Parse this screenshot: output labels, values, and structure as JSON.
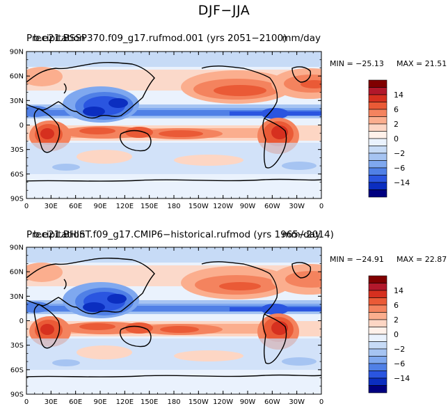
{
  "figure": {
    "title": "DJF−JJA"
  },
  "chart_data": [
    {
      "type": "heatmap",
      "title": "b.e21.BSSP370.f09_g17.rufmod.001 (yrs 2051−2100)",
      "left_label": "Precipitation",
      "right_label": "mm/day",
      "variable": "Precipitation",
      "units": "mm/day",
      "season_difference": "DJF−JJA",
      "min_label": "MIN = −25.13",
      "max_label": "MAX =  21.51",
      "min": -25.13,
      "max": 21.51,
      "x_ticks": [
        "0",
        "30E",
        "60E",
        "90E",
        "120E",
        "150E",
        "180",
        "150W",
        "120W",
        "90W",
        "60W",
        "30W",
        "0"
      ],
      "y_ticks": [
        "90N",
        "60N",
        "30N",
        "0",
        "30S",
        "60S",
        "90S"
      ],
      "xlim": [
        0,
        360
      ],
      "ylim": [
        -90,
        90
      ],
      "colorbar_labels": [
        "14",
        "6",
        "2",
        "0",
        "−2",
        "−6",
        "−14"
      ],
      "colorbar_colors": [
        "#800000",
        "#b2182b",
        "#d6301f",
        "#ea5a36",
        "#f4835e",
        "#fbae8e",
        "#fdd6c4",
        "#fff1ea",
        "#eaf2fd",
        "#c7dbf6",
        "#a6c4f2",
        "#7fa8ef",
        "#5080e6",
        "#2a55e0",
        "#0b2ec0",
        "#000080"
      ]
    },
    {
      "type": "heatmap",
      "title": "b.e21.BHIST.f09_g17.CMIP6−historical.rufmod (yrs 1965−2014)",
      "left_label": "Precipitation",
      "right_label": "mm/day",
      "variable": "Precipitation",
      "units": "mm/day",
      "season_difference": "DJF−JJA",
      "min_label": "MIN = −24.91",
      "max_label": "MAX =  22.87",
      "min": -24.91,
      "max": 22.87,
      "x_ticks": [
        "0",
        "30E",
        "60E",
        "90E",
        "120E",
        "150E",
        "180",
        "150W",
        "120W",
        "90W",
        "60W",
        "30W",
        "0"
      ],
      "y_ticks": [
        "90N",
        "60N",
        "30N",
        "0",
        "30S",
        "60S",
        "90S"
      ],
      "xlim": [
        0,
        360
      ],
      "ylim": [
        -90,
        90
      ],
      "colorbar_labels": [
        "14",
        "6",
        "2",
        "0",
        "−2",
        "−6",
        "−14"
      ],
      "colorbar_colors": [
        "#800000",
        "#b2182b",
        "#d6301f",
        "#ea5a36",
        "#f4835e",
        "#fbae8e",
        "#fdd6c4",
        "#fff1ea",
        "#eaf2fd",
        "#c7dbf6",
        "#a6c4f2",
        "#7fa8ef",
        "#5080e6",
        "#2a55e0",
        "#0b2ec0",
        "#000080"
      ]
    }
  ]
}
